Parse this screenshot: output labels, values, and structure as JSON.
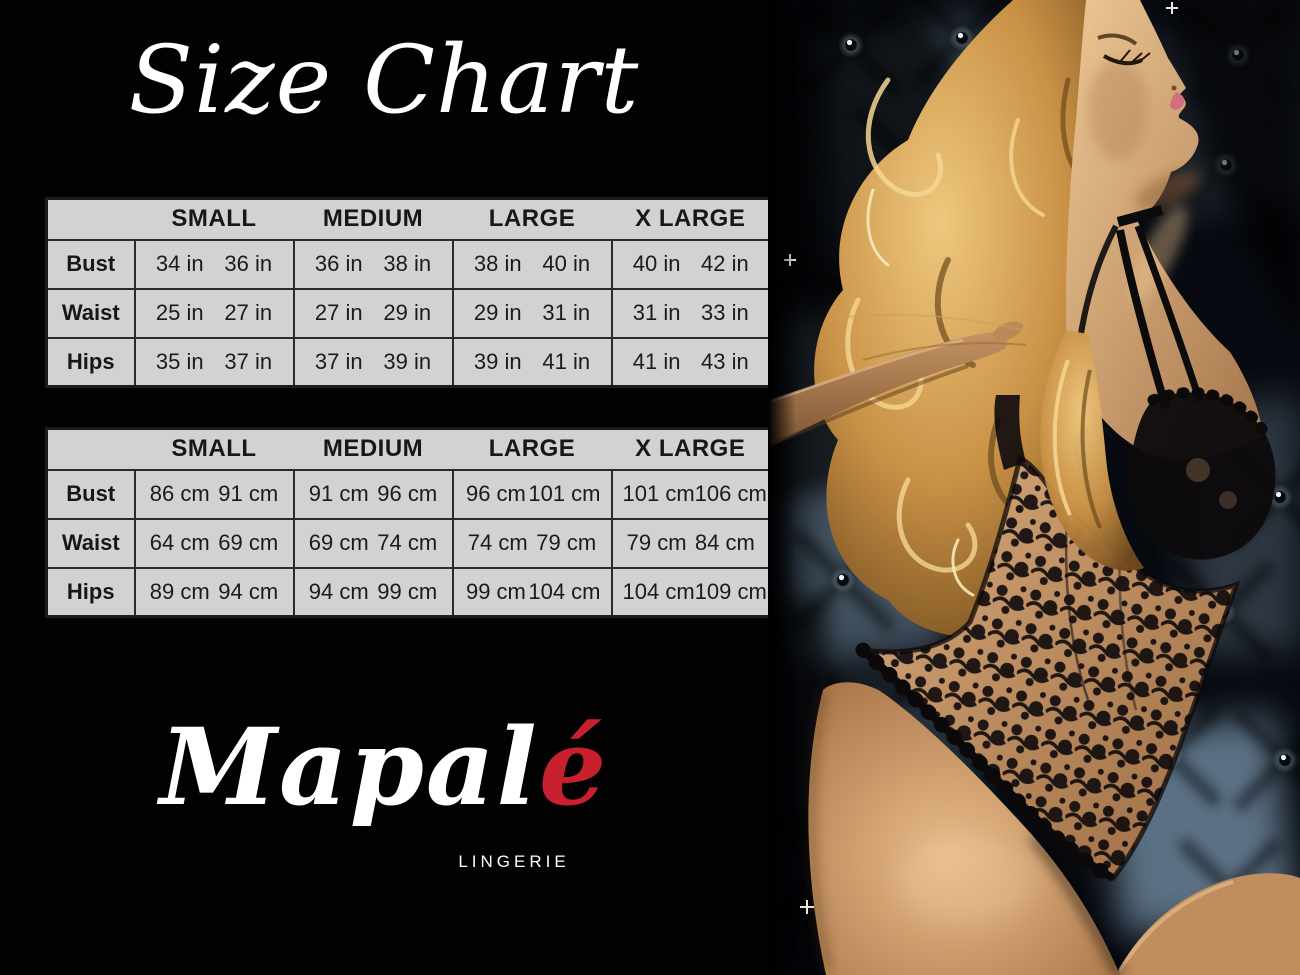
{
  "title": "Size Chart",
  "brand": {
    "script_main": "Mapal",
    "script_accent": "é",
    "subtitle": "LINGERIE"
  },
  "colors": {
    "background": "#000000",
    "table_background": "#d2d2d2",
    "table_border": "#2a2a2a",
    "table_text": "#1b1b1b",
    "title_color": "#ffffff",
    "brand_accent_red": "#c8202e"
  },
  "size_tables": {
    "columns": [
      "SMALL",
      "MEDIUM",
      "LARGE",
      "X LARGE"
    ],
    "inches": {
      "unit_label": "in",
      "rows": [
        {
          "label": "Bust",
          "values": [
            [
              "34 in",
              "36 in"
            ],
            [
              "36 in",
              "38 in"
            ],
            [
              "38 in",
              "40 in"
            ],
            [
              "40 in",
              "42 in"
            ]
          ]
        },
        {
          "label": "Waist",
          "values": [
            [
              "25 in",
              "27 in"
            ],
            [
              "27 in",
              "29 in"
            ],
            [
              "29 in",
              "31 in"
            ],
            [
              "31 in",
              "33 in"
            ]
          ]
        },
        {
          "label": "Hips",
          "values": [
            [
              "35 in",
              "37 in"
            ],
            [
              "37 in",
              "39 in"
            ],
            [
              "39 in",
              "41 in"
            ],
            [
              "41 in",
              "43 in"
            ]
          ]
        }
      ]
    },
    "cm": {
      "unit_label": "cm",
      "rows": [
        {
          "label": "Bust",
          "values": [
            [
              "86 cm",
              "91 cm"
            ],
            [
              "91 cm",
              "96 cm"
            ],
            [
              "96 cm",
              "101 cm"
            ],
            [
              "101 cm",
              "106 cm"
            ]
          ]
        },
        {
          "label": "Waist",
          "values": [
            [
              "64 cm",
              "69 cm"
            ],
            [
              "69 cm",
              "74 cm"
            ],
            [
              "74 cm",
              "79 cm"
            ],
            [
              "79 cm",
              "84 cm"
            ]
          ]
        },
        {
          "label": "Hips",
          "values": [
            [
              "89 cm",
              "94 cm"
            ],
            [
              "94 cm",
              "99 cm"
            ],
            [
              "99 cm",
              "104 cm"
            ],
            [
              "104 cm",
              "109 cm"
            ]
          ]
        }
      ]
    }
  },
  "photo": {
    "alt": "Blonde model in a black floral lace bodysuit leaning back against a dark blue tufted leather backdrop"
  }
}
